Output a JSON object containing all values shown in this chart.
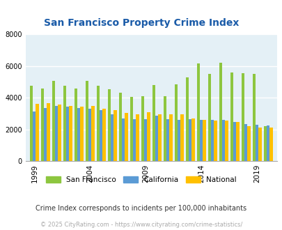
{
  "title": "San Francisco Property Crime Index",
  "title_color": "#1a5ba8",
  "subtitle": "Crime Index corresponds to incidents per 100,000 inhabitants",
  "subtitle_color": "#333333",
  "copyright": "© 2025 CityRating.com - https://www.cityrating.com/crime-statistics/",
  "copyright_color": "#aaaaaa",
  "years": [
    1999,
    2000,
    2001,
    2002,
    2003,
    2004,
    2005,
    2006,
    2007,
    2008,
    2009,
    2010,
    2011,
    2012,
    2013,
    2014,
    2015,
    2016,
    2017,
    2018,
    2019,
    2020
  ],
  "sf": [
    4750,
    4600,
    5050,
    4750,
    4600,
    5050,
    4750,
    4550,
    4300,
    4050,
    4100,
    4800,
    4100,
    4850,
    5300,
    6150,
    5500,
    6200,
    5600,
    5550,
    5500,
    2200
  ],
  "ca": [
    3150,
    3350,
    3500,
    3450,
    3350,
    3300,
    3200,
    2950,
    2700,
    2650,
    2650,
    2850,
    2650,
    2600,
    2650,
    2600,
    2600,
    2600,
    2450,
    2350,
    2300,
    2250
  ],
  "nat": [
    3600,
    3650,
    3550,
    3500,
    3450,
    3500,
    3300,
    3200,
    3050,
    2950,
    3100,
    2950,
    2950,
    2950,
    2700,
    2600,
    2550,
    2550,
    2450,
    2200,
    2100,
    2100
  ],
  "sf_color": "#8dc63f",
  "ca_color": "#5b9bd5",
  "nat_color": "#ffc000",
  "bg_color": "#e4f0f6",
  "ylim": [
    0,
    8000
  ],
  "yticks": [
    0,
    2000,
    4000,
    6000,
    8000
  ],
  "xtick_years": [
    1999,
    2004,
    2009,
    2014,
    2019
  ],
  "bar_width": 0.27,
  "legend_labels": [
    "San Francisco",
    "California",
    "National"
  ]
}
